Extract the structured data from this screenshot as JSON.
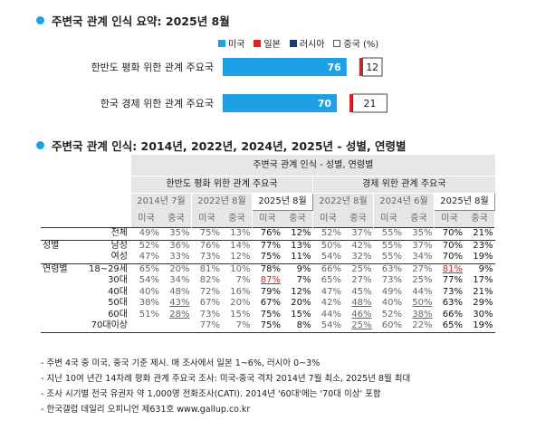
{
  "section1": {
    "title": "주변국 관계 인식 요약: 2025년 8월"
  },
  "legend": [
    {
      "label": "미국",
      "color": "#1ea0e6"
    },
    {
      "label": "일본",
      "color": "#e02020"
    },
    {
      "label": "러시아",
      "color": "#1f3a6e"
    },
    {
      "label": "중국 (%)",
      "color": "#ffffff"
    }
  ],
  "chart_data": {
    "type": "bar",
    "categories": [
      "한반도 평화 위한 관계 주요국",
      "한국 경제 위한 관계 주요국"
    ],
    "series": [
      {
        "name": "미국",
        "values": [
          76,
          70
        ],
        "value_labels": [
          "76",
          "70"
        ]
      },
      {
        "name": "일본",
        "values": [
          2,
          2
        ]
      },
      {
        "name": "러시아",
        "values": [
          0,
          0
        ]
      },
      {
        "name": "중국 (%)",
        "values": [
          12,
          21
        ],
        "value_labels": [
          "12",
          "21"
        ]
      }
    ],
    "xlim": [
      0,
      100
    ]
  },
  "section2": {
    "title": "주변국 관계 인식: 2014년, 2022년, 2024년, 2025년 - 성별, 연령별"
  },
  "table": {
    "top_header": "주변국 관계 인식 - 성별, 연령별",
    "groups": [
      "한반도 평화 위한 관계 주요국",
      "경제 위한 관계 주요국"
    ],
    "years": [
      "2014년 7월",
      "2022년 8월",
      "2025년 8월",
      "2022년 8월",
      "2024년 6월",
      "2025년 8월"
    ],
    "countries": [
      "미국",
      "중국",
      "미국",
      "중국",
      "미국",
      "중국",
      "미국",
      "중국",
      "미국",
      "중국",
      "미국",
      "중국"
    ],
    "rows": [
      {
        "cat": "",
        "label": "전체",
        "values": [
          "49%",
          "35%",
          "75%",
          "13%",
          "76%",
          "12%",
          "52%",
          "37%",
          "55%",
          "35%",
          "70%",
          "21%"
        ]
      },
      {
        "cat": "성별",
        "label": "남성",
        "values": [
          "52%",
          "36%",
          "76%",
          "14%",
          "77%",
          "13%",
          "50%",
          "42%",
          "55%",
          "37%",
          "70%",
          "23%"
        ]
      },
      {
        "cat": "",
        "label": "여성",
        "values": [
          "47%",
          "33%",
          "73%",
          "12%",
          "75%",
          "11%",
          "54%",
          "32%",
          "55%",
          "34%",
          "70%",
          "19%"
        ]
      },
      {
        "cat": "연령별",
        "label": "18~29세",
        "values": [
          "65%",
          "20%",
          "81%",
          "10%",
          "78%",
          "9%",
          "66%",
          "25%",
          "63%",
          "27%",
          "81%",
          "9%"
        ]
      },
      {
        "cat": "",
        "label": "30대",
        "values": [
          "54%",
          "34%",
          "82%",
          "7%",
          "87%",
          "7%",
          "65%",
          "27%",
          "73%",
          "25%",
          "77%",
          "17%"
        ]
      },
      {
        "cat": "",
        "label": "40대",
        "values": [
          "40%",
          "48%",
          "72%",
          "16%",
          "79%",
          "12%",
          "47%",
          "45%",
          "49%",
          "44%",
          "73%",
          "21%"
        ]
      },
      {
        "cat": "",
        "label": "50대",
        "values": [
          "38%",
          "43%",
          "67%",
          "20%",
          "67%",
          "20%",
          "42%",
          "48%",
          "40%",
          "50%",
          "63%",
          "29%"
        ]
      },
      {
        "cat": "",
        "label": "60대",
        "values": [
          "51%",
          "28%",
          "73%",
          "15%",
          "75%",
          "15%",
          "44%",
          "46%",
          "52%",
          "38%",
          "66%",
          "30%"
        ]
      },
      {
        "cat": "",
        "label": "70대이상",
        "values": [
          "",
          "",
          "77%",
          "7%",
          "75%",
          "8%",
          "54%",
          "25%",
          "60%",
          "22%",
          "65%",
          "19%"
        ]
      }
    ]
  },
  "notes": [
    "- 주변 4국 중 미국, 중국 기준 제시. 매 조사에서 일본 1~6%, 러시아 0~3%",
    "- 지난 10여 년간 14차례 평화 관계 주요국 조사: 미국-중국 격차 2014년 7월 최소, 2025년 8월 최대",
    "- 조사 시기별 전국 유권자 약 1,000명 전화조사(CATI). 2014년 '60대'에는 '70대 이상' 포함",
    "- 한국갤럽 데일리 오피니언 제631호 www.gallup.co.kr"
  ]
}
